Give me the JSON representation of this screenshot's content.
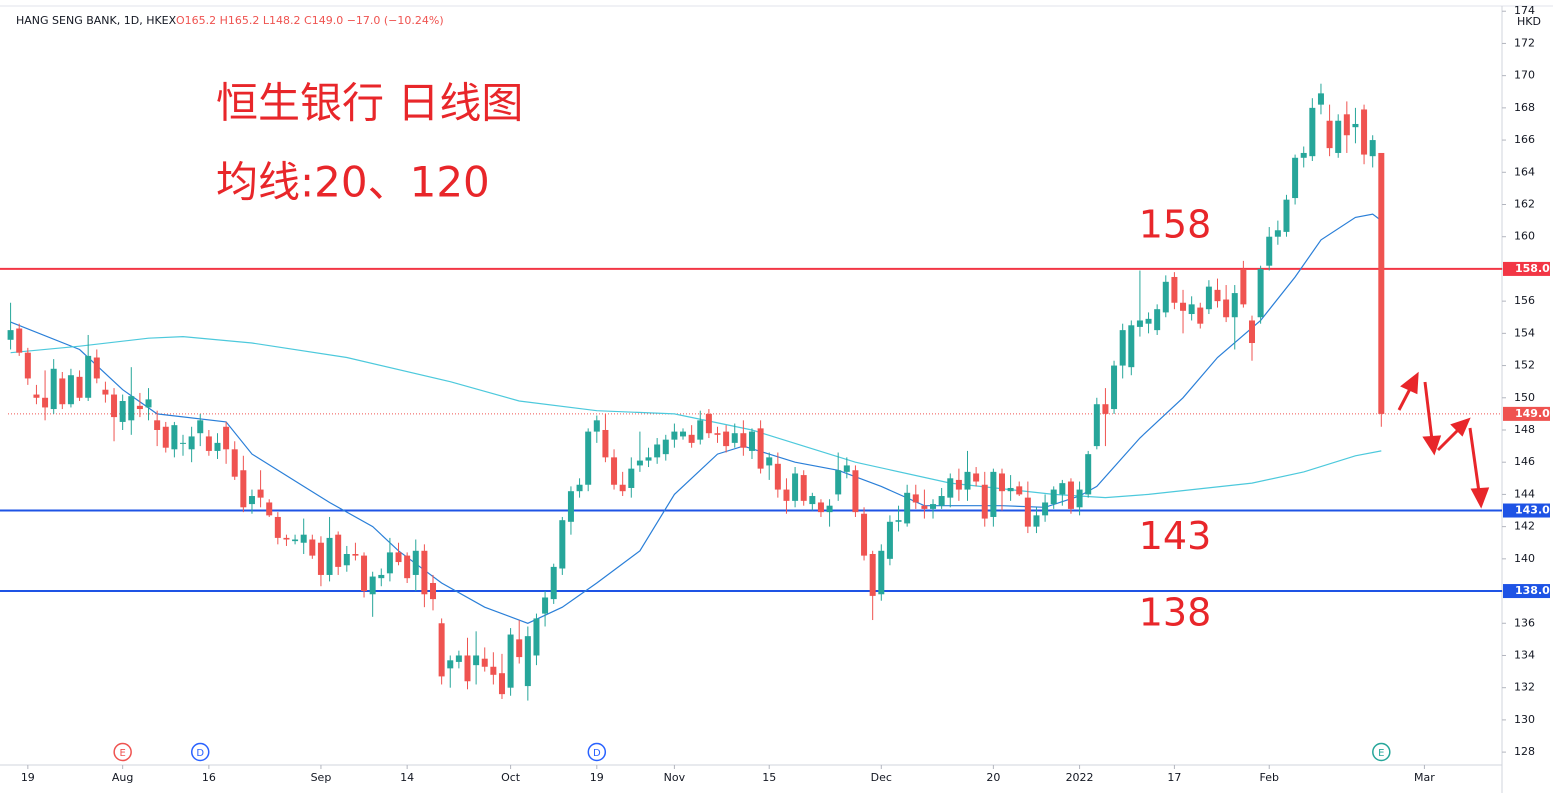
{
  "chart_data": {
    "type": "candlestick",
    "symbol": "HANG SENG BANK, 1D, HKEX",
    "quote": "O165.2 H165.2 L148.2 C149.0 −17.0 (−10.24%)",
    "title": "恒生银行 日线图",
    "subtitle": "均线:20、120",
    "currency": "HKD",
    "up_color": "#26a69a",
    "down_color": "#ef5350",
    "candles": [
      [
        153.6,
        155.9,
        153.0,
        154.2
      ],
      [
        154.3,
        154.6,
        152.6,
        152.8
      ],
      [
        152.8,
        153.1,
        150.8,
        151.2
      ],
      [
        150.2,
        150.8,
        149.6,
        150.0
      ],
      [
        150.0,
        151.7,
        148.6,
        149.4
      ],
      [
        149.3,
        152.4,
        149.0,
        151.8
      ],
      [
        151.2,
        151.6,
        149.3,
        149.6
      ],
      [
        149.6,
        151.8,
        149.4,
        151.4
      ],
      [
        151.3,
        151.7,
        149.8,
        150.0
      ],
      [
        150.0,
        153.9,
        149.8,
        152.6
      ],
      [
        152.5,
        153.0,
        150.9,
        151.2
      ],
      [
        150.5,
        151.0,
        149.7,
        150.2
      ],
      [
        150.2,
        150.6,
        147.3,
        148.8
      ],
      [
        148.5,
        150.2,
        148.0,
        149.8
      ],
      [
        148.6,
        151.9,
        147.7,
        150.1
      ],
      [
        149.5,
        150.3,
        148.8,
        149.3
      ],
      [
        149.4,
        150.6,
        148.6,
        149.9
      ],
      [
        148.6,
        149.2,
        147.0,
        148.0
      ],
      [
        148.2,
        148.5,
        146.6,
        146.9
      ],
      [
        146.8,
        148.5,
        146.3,
        148.3
      ],
      [
        147.2,
        147.7,
        146.4,
        147.2
      ],
      [
        146.8,
        148.2,
        146.0,
        147.6
      ],
      [
        147.8,
        149.0,
        147.0,
        148.6
      ],
      [
        147.6,
        148.0,
        146.4,
        146.7
      ],
      [
        146.7,
        147.8,
        146.2,
        147.2
      ],
      [
        148.2,
        148.5,
        145.9,
        146.8
      ],
      [
        146.8,
        147.3,
        144.9,
        145.1
      ],
      [
        145.5,
        146.4,
        142.9,
        143.2
      ],
      [
        143.4,
        144.3,
        142.8,
        143.9
      ],
      [
        144.3,
        145.5,
        143.2,
        143.8
      ],
      [
        143.5,
        143.7,
        142.6,
        142.7
      ],
      [
        142.6,
        142.9,
        140.9,
        141.3
      ],
      [
        141.3,
        141.5,
        140.8,
        141.2
      ],
      [
        141.1,
        141.5,
        140.9,
        141.2
      ],
      [
        141.0,
        142.5,
        140.3,
        141.5
      ],
      [
        141.2,
        141.5,
        140.0,
        140.2
      ],
      [
        141.0,
        141.4,
        138.3,
        139.0
      ],
      [
        139.0,
        142.6,
        138.6,
        141.3
      ],
      [
        141.5,
        141.7,
        139.0,
        139.5
      ],
      [
        139.6,
        140.8,
        139.2,
        140.3
      ],
      [
        140.3,
        141.0,
        139.9,
        140.2
      ],
      [
        140.2,
        140.4,
        137.6,
        138.0
      ],
      [
        137.8,
        139.2,
        136.4,
        138.9
      ],
      [
        138.8,
        139.4,
        138.3,
        139.0
      ],
      [
        139.1,
        141.3,
        138.6,
        140.4
      ],
      [
        140.4,
        141.0,
        139.6,
        139.8
      ],
      [
        140.2,
        140.4,
        138.5,
        138.8
      ],
      [
        139.0,
        141.2,
        138.0,
        140.5
      ],
      [
        140.5,
        140.9,
        137.0,
        137.8
      ],
      [
        138.5,
        139.0,
        136.8,
        137.5
      ],
      [
        136.0,
        136.3,
        132.2,
        132.7
      ],
      [
        133.2,
        134.0,
        132.0,
        133.7
      ],
      [
        133.6,
        134.3,
        133.2,
        134.0
      ],
      [
        134.0,
        135.1,
        131.9,
        132.4
      ],
      [
        133.4,
        135.5,
        132.2,
        134.0
      ],
      [
        133.8,
        134.5,
        133.0,
        133.3
      ],
      [
        133.3,
        134.2,
        132.2,
        132.8
      ],
      [
        132.9,
        134.1,
        131.3,
        131.6
      ],
      [
        132.0,
        135.7,
        131.5,
        135.3
      ],
      [
        135.0,
        136.2,
        133.5,
        133.9
      ],
      [
        132.1,
        135.8,
        131.2,
        135.2
      ],
      [
        134.0,
        136.6,
        133.4,
        136.3
      ],
      [
        136.6,
        138.0,
        135.8,
        137.6
      ],
      [
        137.5,
        139.7,
        137.2,
        139.5
      ],
      [
        139.4,
        142.6,
        139.0,
        142.4
      ],
      [
        142.3,
        144.5,
        141.5,
        144.2
      ],
      [
        144.2,
        145.0,
        143.8,
        144.6
      ],
      [
        144.6,
        148.1,
        144.2,
        147.9
      ],
      [
        147.9,
        148.9,
        147.2,
        148.6
      ],
      [
        148.0,
        149.0,
        146.0,
        146.3
      ],
      [
        146.3,
        146.8,
        144.3,
        144.6
      ],
      [
        144.6,
        145.4,
        143.9,
        144.2
      ],
      [
        144.4,
        146.3,
        143.8,
        145.6
      ],
      [
        145.8,
        147.9,
        145.4,
        146.1
      ],
      [
        146.1,
        146.9,
        145.7,
        146.3
      ],
      [
        146.3,
        147.5,
        145.9,
        147.1
      ],
      [
        146.5,
        147.7,
        146.1,
        147.4
      ],
      [
        147.4,
        148.4,
        146.9,
        147.9
      ],
      [
        147.6,
        148.1,
        147.4,
        147.9
      ],
      [
        147.7,
        148.3,
        146.9,
        147.2
      ],
      [
        147.4,
        149.2,
        147.1,
        148.6
      ],
      [
        149.0,
        149.3,
        147.5,
        147.8
      ],
      [
        147.8,
        148.2,
        147.2,
        147.7
      ],
      [
        147.9,
        148.3,
        146.6,
        147.0
      ],
      [
        147.2,
        148.4,
        146.9,
        147.8
      ],
      [
        147.8,
        148.6,
        146.4,
        146.9
      ],
      [
        146.7,
        148.1,
        146.2,
        147.9
      ],
      [
        148.1,
        148.6,
        145.3,
        145.6
      ],
      [
        145.8,
        146.6,
        144.9,
        146.3
      ],
      [
        145.9,
        146.6,
        143.8,
        144.3
      ],
      [
        144.3,
        145.0,
        142.8,
        143.6
      ],
      [
        143.6,
        145.7,
        143.2,
        145.3
      ],
      [
        145.2,
        145.5,
        143.3,
        143.6
      ],
      [
        143.4,
        144.1,
        143.0,
        143.9
      ],
      [
        143.5,
        143.7,
        142.6,
        142.9
      ],
      [
        142.9,
        143.7,
        142.0,
        143.3
      ],
      [
        144.0,
        146.6,
        143.6,
        145.5
      ],
      [
        145.4,
        146.3,
        145.0,
        145.8
      ],
      [
        145.5,
        145.8,
        142.6,
        142.9
      ],
      [
        142.8,
        143.2,
        139.9,
        140.2
      ],
      [
        140.3,
        140.5,
        136.2,
        137.7
      ],
      [
        137.8,
        140.9,
        137.4,
        140.5
      ],
      [
        140.0,
        142.7,
        139.6,
        142.3
      ],
      [
        142.3,
        143.3,
        141.7,
        142.4
      ],
      [
        142.2,
        144.6,
        142.0,
        144.1
      ],
      [
        144.0,
        144.6,
        143.1,
        143.5
      ],
      [
        143.3,
        144.3,
        142.5,
        143.1
      ],
      [
        143.1,
        143.7,
        142.5,
        143.4
      ],
      [
        143.3,
        144.4,
        143.1,
        143.9
      ],
      [
        143.8,
        145.3,
        143.2,
        145.0
      ],
      [
        144.9,
        145.6,
        143.6,
        144.3
      ],
      [
        144.3,
        146.7,
        143.6,
        145.4
      ],
      [
        145.3,
        145.7,
        144.5,
        144.8
      ],
      [
        144.6,
        145.4,
        142.0,
        142.5
      ],
      [
        142.6,
        145.6,
        142.0,
        145.4
      ],
      [
        145.3,
        145.6,
        143.0,
        144.2
      ],
      [
        144.2,
        145.2,
        143.6,
        144.4
      ],
      [
        144.5,
        144.8,
        143.9,
        144.0
      ],
      [
        143.8,
        144.8,
        141.6,
        142.0
      ],
      [
        142.0,
        143.2,
        141.6,
        142.7
      ],
      [
        142.7,
        144.0,
        142.3,
        143.5
      ],
      [
        143.4,
        144.5,
        143.1,
        144.3
      ],
      [
        144.0,
        144.9,
        143.3,
        144.7
      ],
      [
        144.8,
        145.0,
        142.8,
        143.1
      ],
      [
        143.2,
        144.8,
        142.7,
        144.3
      ],
      [
        144.0,
        146.7,
        143.8,
        146.5
      ],
      [
        147.0,
        150.0,
        146.8,
        149.6
      ],
      [
        149.6,
        150.6,
        147.0,
        149.0
      ],
      [
        149.3,
        152.3,
        149.0,
        152.0
      ],
      [
        152.0,
        154.6,
        151.2,
        154.2
      ],
      [
        151.9,
        154.8,
        151.4,
        154.5
      ],
      [
        154.4,
        157.9,
        153.8,
        154.8
      ],
      [
        154.6,
        155.3,
        154.0,
        154.9
      ],
      [
        154.2,
        155.8,
        153.9,
        155.5
      ],
      [
        155.3,
        157.6,
        155.0,
        157.2
      ],
      [
        157.5,
        157.8,
        155.5,
        155.9
      ],
      [
        155.9,
        156.7,
        154.0,
        155.4
      ],
      [
        155.2,
        156.3,
        154.8,
        155.8
      ],
      [
        155.6,
        155.9,
        154.3,
        154.6
      ],
      [
        155.5,
        157.3,
        155.2,
        156.9
      ],
      [
        156.7,
        157.4,
        155.6,
        156.0
      ],
      [
        156.1,
        157.0,
        154.7,
        155.0
      ],
      [
        155.0,
        157.0,
        153.0,
        156.5
      ],
      [
        158.0,
        158.5,
        155.6,
        155.8
      ],
      [
        154.8,
        155.1,
        152.3,
        153.4
      ],
      [
        155.0,
        158.2,
        154.6,
        158.0
      ],
      [
        158.2,
        160.6,
        157.9,
        160.0
      ],
      [
        160.0,
        161.0,
        159.5,
        160.4
      ],
      [
        160.3,
        162.6,
        160.0,
        162.3
      ],
      [
        162.4,
        165.1,
        162.0,
        164.9
      ],
      [
        164.9,
        165.6,
        164.3,
        165.2
      ],
      [
        165.0,
        168.6,
        164.7,
        168.0
      ],
      [
        168.2,
        169.5,
        167.6,
        168.9
      ],
      [
        167.2,
        168.2,
        165.0,
        165.5
      ],
      [
        165.2,
        167.6,
        164.9,
        167.2
      ],
      [
        167.6,
        168.4,
        165.2,
        166.3
      ],
      [
        166.8,
        168.0,
        165.8,
        167.0
      ],
      [
        167.9,
        168.2,
        164.5,
        165.1
      ],
      [
        165.0,
        166.3,
        164.3,
        166.0
      ],
      [
        165.2,
        165.2,
        148.2,
        149.0
      ]
    ],
    "ma_lines": [
      {
        "color": "#2a7fd8",
        "x": [
          0,
          8,
          13,
          17,
          25,
          28,
          34,
          37,
          42,
          45,
          50,
          55,
          60,
          64,
          68,
          73,
          77,
          82,
          85,
          91,
          96,
          101,
          106,
          110,
          115,
          120,
          124,
          126,
          131,
          136,
          140,
          145,
          149,
          152,
          156,
          158,
          159
        ],
        "values": [
          154.7,
          153,
          150.5,
          149,
          148.5,
          146.5,
          144.5,
          143.5,
          142,
          140.5,
          138.5,
          137,
          136,
          137,
          138.5,
          140.5,
          144,
          146.5,
          147,
          146,
          145.5,
          144.5,
          143.3,
          143.3,
          143.3,
          143.2,
          143.9,
          144.5,
          147.5,
          150,
          152.5,
          154.8,
          157.5,
          159.8,
          161.2,
          161.4,
          161.0
        ]
      },
      {
        "color": "#4dc9dc",
        "x": [
          0,
          8,
          16,
          20,
          28,
          39,
          51,
          59,
          68,
          77,
          86,
          98,
          109,
          121,
          127,
          132,
          144,
          150,
          156,
          159
        ],
        "values": [
          152.8,
          153.2,
          153.7,
          153.8,
          153.4,
          152.5,
          151,
          149.8,
          149.2,
          149,
          148,
          146,
          144.7,
          144,
          143.8,
          144,
          144.7,
          145.4,
          146.4,
          146.7
        ]
      }
    ],
    "hlines": [
      {
        "value": 158,
        "label": "158.0",
        "color": "#f23645",
        "annotation": "158"
      },
      {
        "value": 143,
        "label": "143.0",
        "color": "#1e53e5",
        "annotation": "143"
      },
      {
        "value": 138,
        "label": "138.0",
        "color": "#1e53e5",
        "annotation": "138"
      }
    ],
    "last_price": {
      "value": 149.0,
      "label": "149.0",
      "color": "#ef5350"
    },
    "events": [
      {
        "label": "E",
        "x": 13,
        "color": "#ef5350"
      },
      {
        "label": "D",
        "x": 22,
        "color": "#2962ff"
      },
      {
        "label": "D",
        "x": 68,
        "color": "#2962ff"
      },
      {
        "label": "E",
        "x": 159,
        "color": "#26a69a"
      }
    ],
    "xlim": [
      -0.3,
      173
    ],
    "xticks": [
      {
        "value": 2,
        "label": "19"
      },
      {
        "value": 13,
        "label": "Aug"
      },
      {
        "value": 23,
        "label": "16"
      },
      {
        "value": 36,
        "label": "Sep"
      },
      {
        "value": 46,
        "label": "14"
      },
      {
        "value": 58,
        "label": "Oct"
      },
      {
        "value": 68,
        "label": "19"
      },
      {
        "value": 77,
        "label": "Nov"
      },
      {
        "value": 88,
        "label": "15"
      },
      {
        "value": 101,
        "label": "Dec"
      },
      {
        "value": 114,
        "label": "20"
      },
      {
        "value": 124,
        "label": "2022"
      },
      {
        "value": 135,
        "label": "17"
      },
      {
        "value": 146,
        "label": "Feb"
      },
      {
        "value": 164,
        "label": "Mar"
      }
    ],
    "ylim": [
      127.2,
      174.2
    ],
    "yticks": [
      128,
      130,
      132,
      134,
      136,
      138,
      140,
      142,
      144,
      146,
      148,
      150,
      152,
      154,
      156,
      158,
      160,
      162,
      164,
      166,
      168,
      170,
      172,
      174
    ],
    "grid": false
  }
}
